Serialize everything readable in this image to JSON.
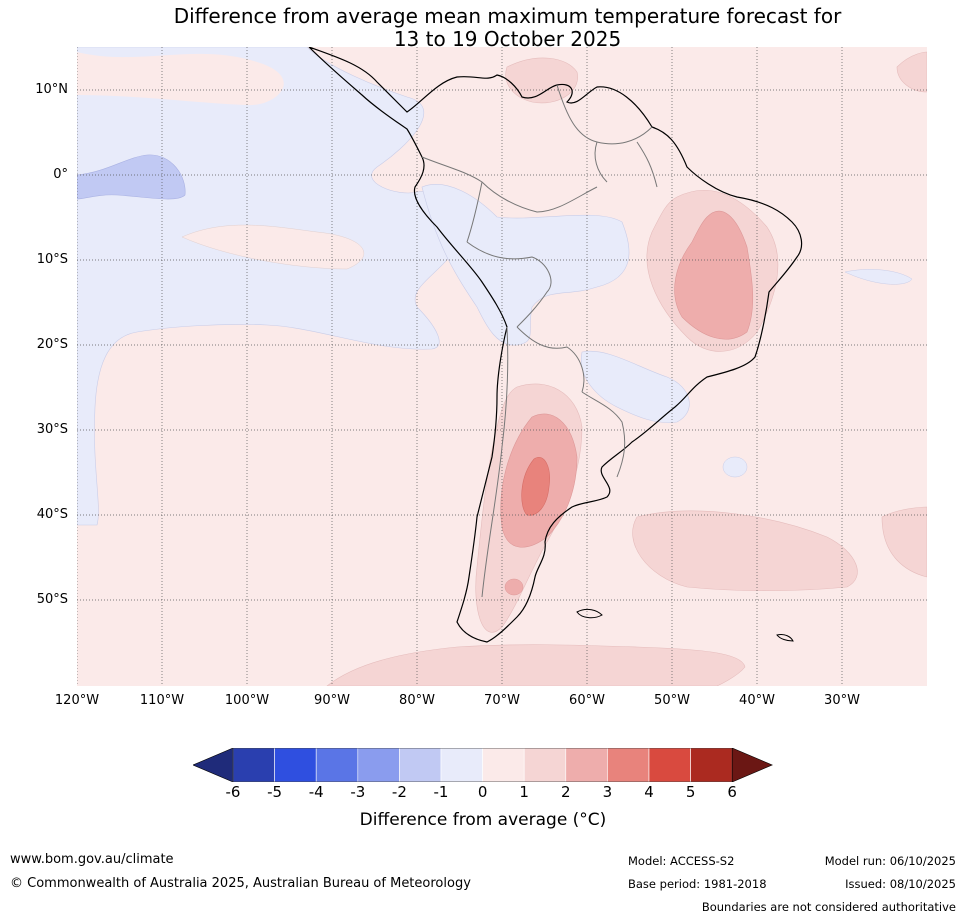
{
  "title": {
    "line1": "Difference from average mean maximum temperature forecast for",
    "line2": "13 to 19 October 2025"
  },
  "map": {
    "latitude_labels": [
      "10°N",
      "0°",
      "10°S",
      "20°S",
      "30°S",
      "40°S",
      "50°S"
    ],
    "longitude_labels": [
      "120°W",
      "110°W",
      "100°W",
      "90°W",
      "80°W",
      "70°W",
      "60°W",
      "50°W",
      "40°W",
      "30°W"
    ],
    "extent": {
      "lon_min": -120,
      "lon_max": -20,
      "lat_min": -60,
      "lat_max": 15
    }
  },
  "colorbar": {
    "ticks": [
      "-6",
      "-5",
      "-4",
      "-3",
      "-2",
      "-1",
      "0",
      "1",
      "2",
      "3",
      "4",
      "5",
      "6"
    ],
    "colors": [
      "#1f2b7a",
      "#2a3faf",
      "#2f4fe0",
      "#5a75e6",
      "#8a9cee",
      "#c1c9f3",
      "#e8ebfa",
      "#fbeae9",
      "#f5d5d4",
      "#eeadac",
      "#e8837c",
      "#d94a3f",
      "#ab2a20",
      "#6b1714"
    ],
    "label": "Difference from average (°C)"
  },
  "footer": {
    "website": "www.bom.gov.au/climate",
    "copyright": "© Commonwealth of Australia 2025, Australian Bureau of Meteorology",
    "model": "Model: ACCESS-S2",
    "base_period": "Base period: 1981-2018",
    "model_run": "Model run: 06/10/2025",
    "issued": "Issued: 08/10/2025",
    "disclaimer": "Boundaries are not considered authoritative"
  }
}
